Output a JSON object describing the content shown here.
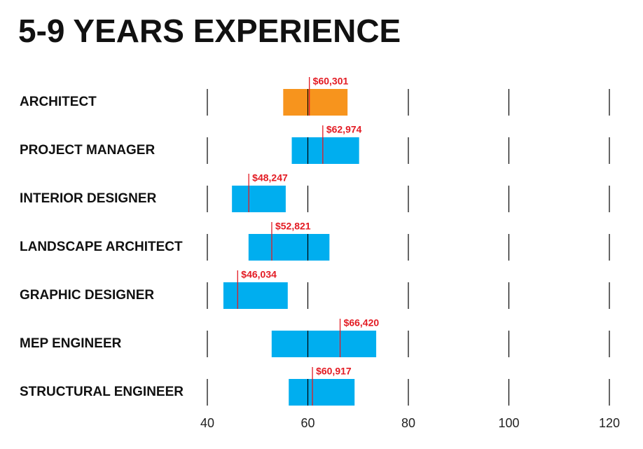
{
  "chart_data": {
    "type": "range",
    "title": "5-9 YEARS EXPERIENCE",
    "categories": [
      "ARCHITECT",
      "PROJECT MANAGER",
      "INTERIOR DESIGNER",
      "LANDSCAPE ARCHITECT",
      "GRAPHIC DESIGNER",
      "MEP ENGINEER",
      "STRUCTURAL ENGINEER"
    ],
    "low": [
      55.1,
      56.8,
      44.9,
      48.2,
      43.2,
      52.8,
      56.2
    ],
    "high": [
      67.9,
      70.2,
      55.6,
      64.3,
      56.0,
      73.6,
      69.3
    ],
    "median": [
      60.301,
      62.974,
      48.247,
      52.821,
      46.034,
      66.42,
      60.917
    ],
    "median_labels": [
      "$60,301",
      "$62,974",
      "$48,247",
      "$52,821",
      "$46,034",
      "$66,420",
      "$60,917"
    ],
    "colors": [
      "#f7941d",
      "#00aeef",
      "#00aeef",
      "#00aeef",
      "#00aeef",
      "#00aeef",
      "#00aeef"
    ],
    "median_color": "#e31b23",
    "xlim": [
      40,
      120
    ],
    "xticks": [
      40,
      60,
      80,
      100,
      120
    ],
    "grid": true
  }
}
